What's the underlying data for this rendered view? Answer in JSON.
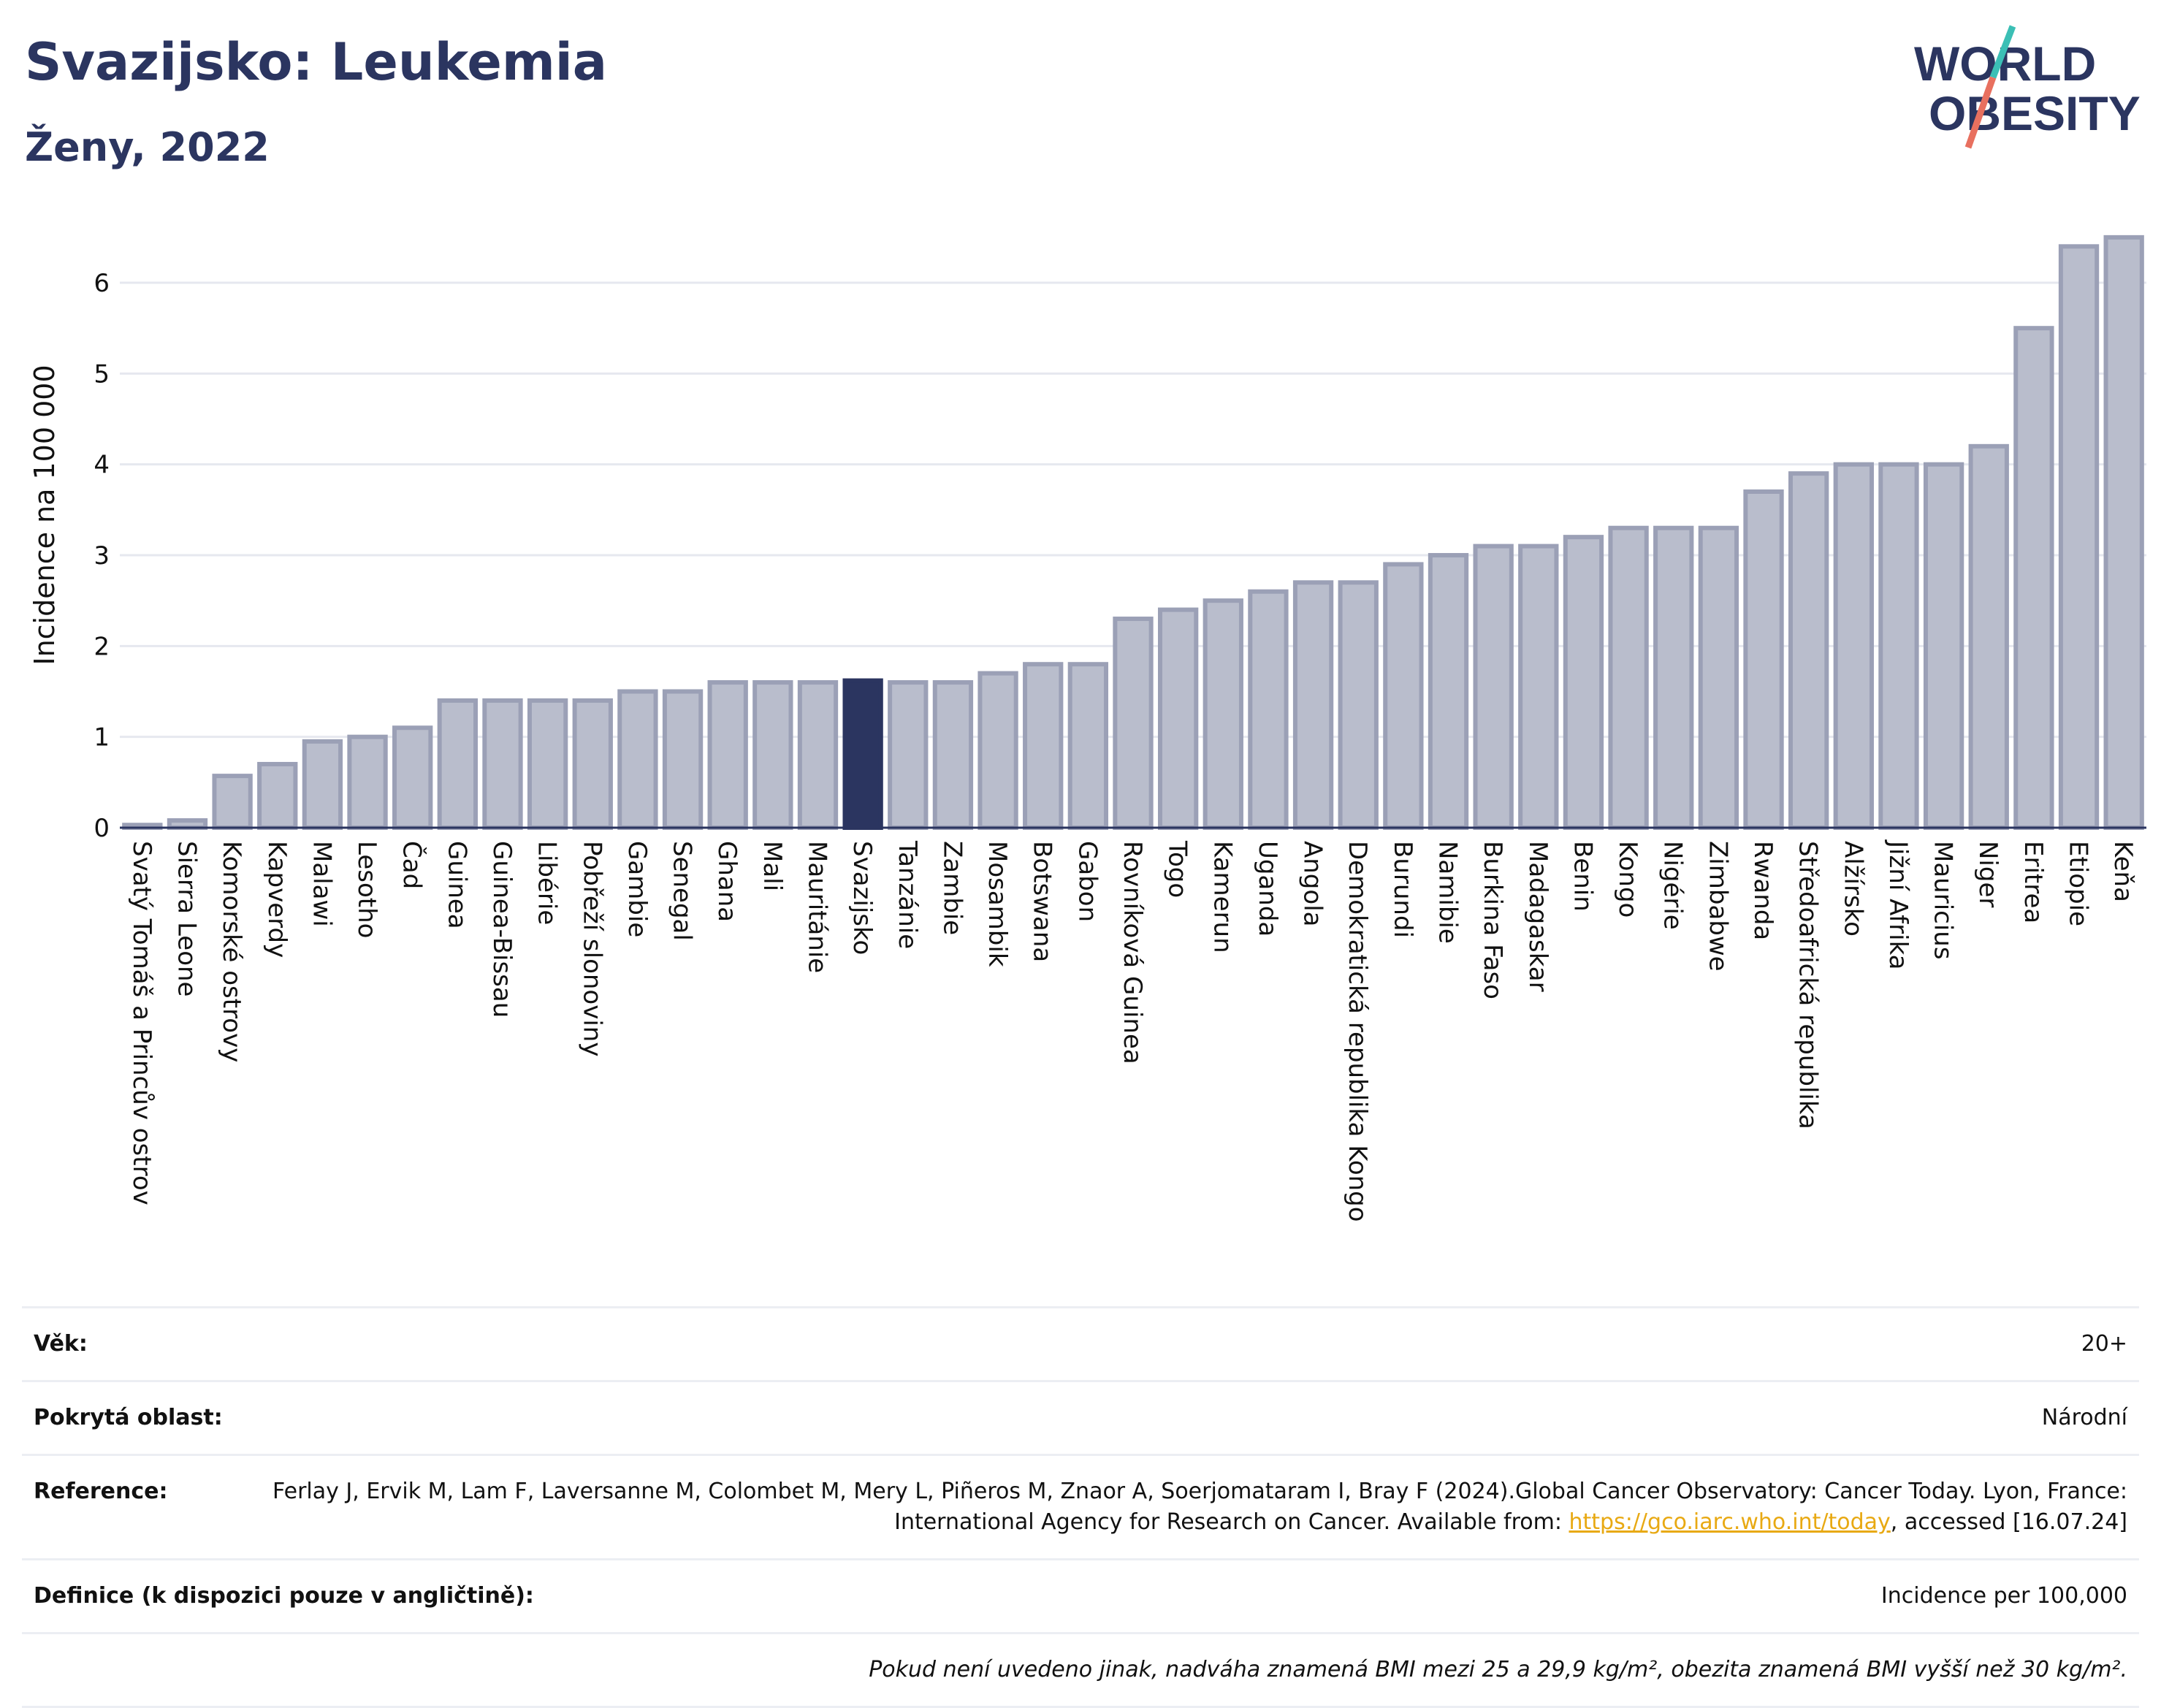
{
  "header": {
    "title": "Svazijsko: Leukemia",
    "subtitle": "Ženy, 2022",
    "logo_line1": "WORLD",
    "logo_line2": "OBESITY"
  },
  "colors": {
    "bar": "#b9bdcc",
    "bar_edge": "#9ba0b6",
    "highlight": "#2b3560",
    "logo_teal": "#3bbfb5",
    "logo_coral": "#e8705f"
  },
  "chart_data": {
    "type": "bar",
    "ylabel": "Incidence na 100 000",
    "xlabel": "",
    "ylim": [
      0,
      6.7
    ],
    "yticks": [
      0,
      1,
      2,
      3,
      4,
      5,
      6
    ],
    "grid": true,
    "highlight": "Svazijsko",
    "categories": [
      "Svatý Tomáš a Princův ostrov",
      "Sierra Leone",
      "Komorské ostrovy",
      "Kapverdy",
      "Malawi",
      "Lesotho",
      "Čad",
      "Guinea",
      "Guinea-Bissau",
      "Libérie",
      "Pobřeží slonoviny",
      "Gambie",
      "Senegal",
      "Ghana",
      "Mali",
      "Mauritánie",
      "Svazijsko",
      "Tanzánie",
      "Zambie",
      "Mosambik",
      "Botswana",
      "Gabon",
      "Rovníková Guinea",
      "Togo",
      "Kamerun",
      "Uganda",
      "Angola",
      "Demokratická republika Kongo",
      "Burundi",
      "Namibie",
      "Burkina Faso",
      "Madagaskar",
      "Benin",
      "Kongo",
      "Nigérie",
      "Zimbabwe",
      "Rwanda",
      "Středoafrická republika",
      "Alžírsko",
      "Jižní Afrika",
      "Mauricius",
      "Niger",
      "Eritrea",
      "Etiopie",
      "Keňa"
    ],
    "values": [
      0.03,
      0.08,
      0.57,
      0.7,
      0.95,
      1.0,
      1.1,
      1.4,
      1.4,
      1.4,
      1.4,
      1.5,
      1.5,
      1.6,
      1.6,
      1.6,
      1.62,
      1.6,
      1.6,
      1.7,
      1.8,
      1.8,
      2.3,
      2.4,
      2.5,
      2.6,
      2.7,
      2.7,
      2.9,
      3.0,
      3.1,
      3.1,
      3.2,
      3.3,
      3.3,
      3.3,
      3.7,
      3.9,
      4.0,
      4.0,
      4.0,
      4.2,
      5.5,
      6.4,
      6.5
    ]
  },
  "info": {
    "age_label": "Věk:",
    "age_value": "20+",
    "area_label": "Pokrytá oblast:",
    "area_value": "Národní",
    "reference_label": "Reference:",
    "reference_text": "Ferlay J, Ervik M, Lam F, Laversanne M, Colombet M, Mery L, Piñeros M, Znaor A, Soerjomataram I, Bray F (2024).Global Cancer Observatory: Cancer Today. Lyon, France: International Agency for Research on Cancer. Available from:",
    "reference_link": "https://gco.iarc.who.int/today",
    "reference_suffix": ", accessed [16.07.24]",
    "definition_label": "Definice (k dispozici pouze v angličtině):",
    "definition_value": "Incidence per 100,000",
    "note": "Pokud není uvedeno jinak, nadváha znamená BMI mezi 25 a 29,9 kg/m², obezita znamená BMI vyšší než 30 kg/m²."
  }
}
